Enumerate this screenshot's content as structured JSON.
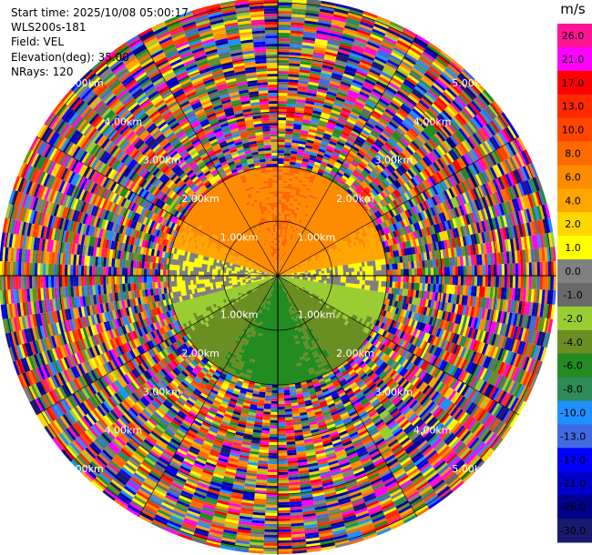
{
  "header": {
    "start_time": "Start time: 2025/10/08 05:00:17",
    "station": "WLS200s-181",
    "field": "Field: VEL",
    "elevation": "Elevation(deg): 35.00",
    "nrays": "NRays: 120"
  },
  "chart_data": {
    "type": "heatmap",
    "projection": "polar-ppi",
    "field": "VEL",
    "units": "m/s",
    "n_rays": 120,
    "elevation_deg": 35.0,
    "range_rings_km": [
      1.0,
      2.0,
      3.0,
      4.0,
      5.0
    ],
    "range_ring_labels": [
      "1.00km",
      "2.00km",
      "3.00km",
      "4.00km",
      "5.00km"
    ],
    "max_range_km": 5.1,
    "valid_data_range_km": 2.0,
    "spokes_deg": [
      0,
      30,
      60,
      90,
      120,
      150,
      180,
      210,
      240,
      270,
      300,
      330
    ],
    "velocity_pattern": [
      {
        "sector": "north",
        "range_km": [
          0.3,
          2.0
        ],
        "value_ms": 5.0
      },
      {
        "sector": "northeast",
        "range_km": [
          0.3,
          2.0
        ],
        "value_ms": 3.5
      },
      {
        "sector": "west-east band",
        "range_km": [
          0.0,
          2.0
        ],
        "value_ms": 0.0
      },
      {
        "sector": "south",
        "range_km": [
          0.3,
          2.0
        ],
        "value_ms": -5.0
      },
      {
        "sector": "beyond 2 km",
        "range_km": [
          2.0,
          5.1
        ],
        "value_ms": "noise"
      }
    ],
    "colorbar": {
      "title": "m/s",
      "tick_labels": [
        "26.0",
        "21.0",
        "17.0",
        "13.0",
        "10.0",
        "8.0",
        "6.0",
        "4.0",
        "2.0",
        "1.0",
        "0.0",
        "-1.0",
        "-2.0",
        "-4.0",
        "-6.0",
        "-8.0",
        "-10.0",
        "-13.0",
        "-17.0",
        "-21.0",
        "-26.0",
        "-30.0"
      ],
      "colors": [
        "#ff1493",
        "#ff00ff",
        "#ff0000",
        "#ff2a00",
        "#ff4500",
        "#ff6a00",
        "#ff8c00",
        "#ffa500",
        "#ffd700",
        "#ffff00",
        "#808080",
        "#696969",
        "#9acd32",
        "#6b8e23",
        "#228b22",
        "#2e8b57",
        "#1e90ff",
        "#4169e1",
        "#0000ff",
        "#0000cd",
        "#00008b",
        "#191970"
      ]
    }
  }
}
